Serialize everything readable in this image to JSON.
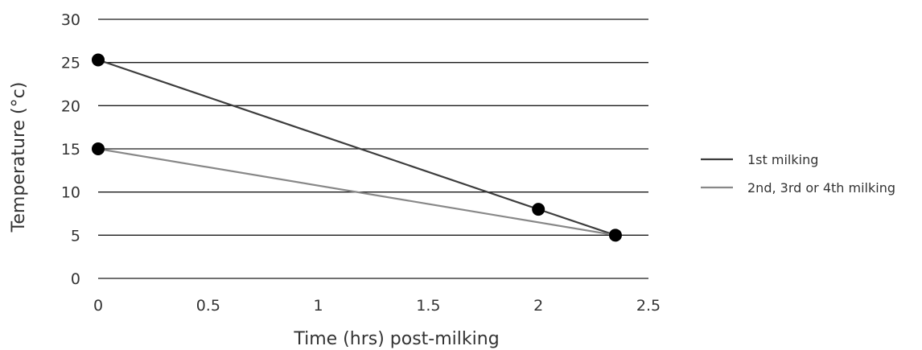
{
  "chart_data": {
    "type": "line",
    "xlabel": "Time (hrs) post-milking",
    "ylabel": "Temperature (°c)",
    "xlim": [
      0,
      2.5
    ],
    "ylim": [
      0,
      30
    ],
    "x_ticks": [
      "0",
      "0.5",
      "1",
      "1.5",
      "2",
      "2.5"
    ],
    "y_ticks": [
      "0",
      "5",
      "10",
      "15",
      "20",
      "25",
      "30"
    ],
    "grid": "horizontal",
    "legend_position": "right",
    "series": [
      {
        "name": "1st milking",
        "color": "#3d3d3d",
        "points": [
          {
            "x": 0,
            "y": 25.3
          },
          {
            "x": 2,
            "y": 8
          },
          {
            "x": 2.35,
            "y": 5
          }
        ]
      },
      {
        "name": "2nd, 3rd or 4th milking",
        "color": "#888888",
        "points": [
          {
            "x": 0,
            "y": 15
          },
          {
            "x": 2.35,
            "y": 5
          }
        ]
      }
    ],
    "marker_color": "#000000",
    "gridline_color": "#1a1a1a"
  }
}
